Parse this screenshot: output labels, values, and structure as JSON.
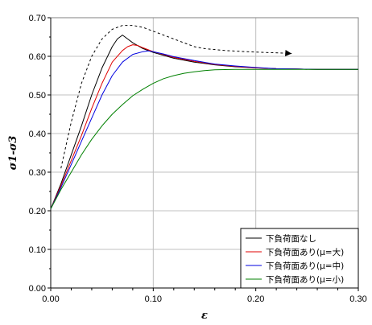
{
  "chart_data": {
    "type": "line",
    "title": "",
    "xlabel": "ε",
    "ylabel": "σ1-σ3",
    "xlim": [
      0,
      0.3
    ],
    "ylim": [
      0,
      0.7
    ],
    "xticks": [
      "0.00",
      "0.10",
      "0.20",
      "0.30"
    ],
    "yticks": [
      "0.00",
      "0.10",
      "0.20",
      "0.30",
      "0.40",
      "0.50",
      "0.60",
      "0.70"
    ],
    "grid": true,
    "legend_position": "bottom-right",
    "series": [
      {
        "name": "下負荷面なし",
        "color": "#000000",
        "x": [
          0,
          0.01,
          0.02,
          0.03,
          0.04,
          0.05,
          0.06,
          0.065,
          0.07,
          0.075,
          0.08,
          0.09,
          0.1,
          0.12,
          0.14,
          0.16,
          0.18,
          0.2,
          0.22,
          0.24,
          0.26,
          0.28,
          0.3
        ],
        "y": [
          0.205,
          0.27,
          0.345,
          0.42,
          0.5,
          0.57,
          0.625,
          0.645,
          0.655,
          0.645,
          0.635,
          0.62,
          0.61,
          0.595,
          0.585,
          0.578,
          0.573,
          0.57,
          0.568,
          0.567,
          0.566,
          0.566,
          0.566
        ]
      },
      {
        "name": "下負荷面あり(μ=大)",
        "color": "#e00000",
        "x": [
          0,
          0.01,
          0.02,
          0.03,
          0.04,
          0.05,
          0.06,
          0.07,
          0.075,
          0.08,
          0.085,
          0.09,
          0.1,
          0.12,
          0.14,
          0.16,
          0.18,
          0.2,
          0.22,
          0.24,
          0.26,
          0.28,
          0.3
        ],
        "y": [
          0.205,
          0.265,
          0.33,
          0.395,
          0.465,
          0.53,
          0.585,
          0.615,
          0.625,
          0.63,
          0.628,
          0.622,
          0.612,
          0.597,
          0.587,
          0.579,
          0.574,
          0.57,
          0.568,
          0.567,
          0.566,
          0.566,
          0.566
        ]
      },
      {
        "name": "下負荷面あり(μ=中)",
        "color": "#0000e0",
        "x": [
          0,
          0.01,
          0.02,
          0.03,
          0.04,
          0.05,
          0.06,
          0.07,
          0.08,
          0.09,
          0.095,
          0.1,
          0.11,
          0.12,
          0.14,
          0.16,
          0.18,
          0.2,
          0.22,
          0.24,
          0.26,
          0.28,
          0.3
        ],
        "y": [
          0.205,
          0.26,
          0.32,
          0.38,
          0.44,
          0.5,
          0.55,
          0.585,
          0.605,
          0.612,
          0.614,
          0.612,
          0.606,
          0.599,
          0.589,
          0.58,
          0.575,
          0.571,
          0.568,
          0.567,
          0.566,
          0.566,
          0.566
        ]
      },
      {
        "name": "下負荷面あり(μ=小)",
        "color": "#008000",
        "x": [
          0,
          0.01,
          0.02,
          0.03,
          0.04,
          0.05,
          0.06,
          0.07,
          0.08,
          0.09,
          0.1,
          0.11,
          0.12,
          0.13,
          0.14,
          0.15,
          0.16,
          0.18,
          0.2,
          0.22,
          0.24,
          0.26,
          0.28,
          0.3
        ],
        "y": [
          0.205,
          0.255,
          0.3,
          0.345,
          0.385,
          0.42,
          0.45,
          0.475,
          0.498,
          0.515,
          0.53,
          0.542,
          0.55,
          0.556,
          0.56,
          0.563,
          0.565,
          0.566,
          0.566,
          0.566,
          0.566,
          0.566,
          0.566,
          0.566
        ]
      }
    ],
    "annotations": [
      {
        "kind": "dashed-arrow",
        "color": "#000000",
        "x": [
          0.01,
          0.02,
          0.03,
          0.04,
          0.05,
          0.06,
          0.07,
          0.08,
          0.09,
          0.1,
          0.11,
          0.12,
          0.13,
          0.14,
          0.15,
          0.17,
          0.19,
          0.21,
          0.23,
          0.235
        ],
        "y": [
          0.31,
          0.43,
          0.53,
          0.6,
          0.645,
          0.67,
          0.68,
          0.68,
          0.675,
          0.665,
          0.655,
          0.645,
          0.635,
          0.625,
          0.62,
          0.615,
          0.612,
          0.61,
          0.608,
          0.607
        ]
      }
    ]
  }
}
